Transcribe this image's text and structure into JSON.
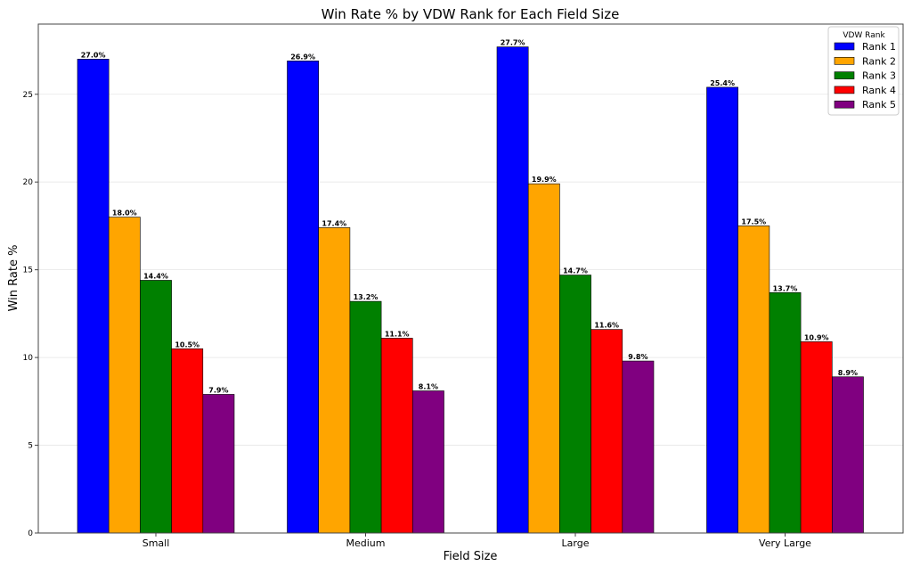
{
  "chart_data": {
    "type": "bar",
    "title": "Win Rate % by VDW Rank for Each Field Size",
    "xlabel": "Field Size",
    "ylabel": "Win Rate %",
    "categories": [
      "Small",
      "Medium",
      "Large",
      "Very Large"
    ],
    "ylim": [
      0,
      29
    ],
    "yticks": [
      0,
      5,
      10,
      15,
      20,
      25
    ],
    "grid": true,
    "legend": {
      "title": "VDW Rank",
      "placement": "top-right"
    },
    "series": [
      {
        "name": "Rank 1",
        "color": "#0000ff",
        "values": [
          27.0,
          26.9,
          27.7,
          25.4
        ],
        "labels": [
          "27.0%",
          "26.9%",
          "27.7%",
          "25.4%"
        ]
      },
      {
        "name": "Rank 2",
        "color": "#ffa500",
        "values": [
          18.0,
          17.4,
          19.9,
          17.5
        ],
        "labels": [
          "18.0%",
          "17.4%",
          "19.9%",
          "17.5%"
        ]
      },
      {
        "name": "Rank 3",
        "color": "#008000",
        "values": [
          14.4,
          13.2,
          14.7,
          13.7
        ],
        "labels": [
          "14.4%",
          "13.2%",
          "14.7%",
          "13.7%"
        ]
      },
      {
        "name": "Rank 4",
        "color": "#ff0000",
        "values": [
          10.5,
          11.1,
          11.6,
          10.9
        ],
        "labels": [
          "10.5%",
          "11.1%",
          "11.6%",
          "10.9%"
        ]
      },
      {
        "name": "Rank 5",
        "color": "#800080",
        "values": [
          7.9,
          8.1,
          9.8,
          8.9
        ],
        "labels": [
          "7.9%",
          "8.1%",
          "9.8%",
          "8.9%"
        ]
      }
    ]
  }
}
